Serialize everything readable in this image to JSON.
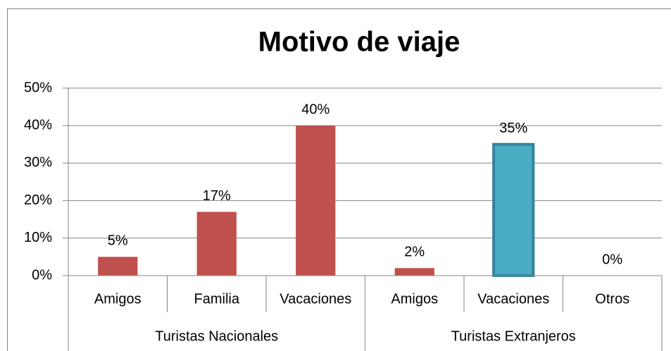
{
  "chart_data": {
    "type": "bar",
    "title": "Motivo de viaje",
    "groups": [
      {
        "name": "Turistas Nacionales",
        "categories": [
          "Amigos",
          "Familia",
          "Vacaciones"
        ],
        "values": [
          5,
          17,
          40
        ],
        "value_labels": [
          "5%",
          "17%",
          "40%"
        ],
        "colors": [
          "#c0504d",
          "#c0504d",
          "#c0504d"
        ]
      },
      {
        "name": "Turistas Extranjeros",
        "categories": [
          "Amigos",
          "Vacaciones",
          "Otros"
        ],
        "values": [
          2,
          35,
          0
        ],
        "value_labels": [
          "2%",
          "35%",
          "0%"
        ],
        "colors": [
          "#c0504d",
          "#4bacc6",
          "#c0504d"
        ]
      }
    ],
    "ylim": [
      0,
      50
    ],
    "yticks": [
      {
        "value": 0,
        "label": "0%"
      },
      {
        "value": 10,
        "label": "10%"
      },
      {
        "value": 20,
        "label": "20%"
      },
      {
        "value": 30,
        "label": "30%"
      },
      {
        "value": 40,
        "label": "40%"
      },
      {
        "value": 50,
        "label": "50%"
      }
    ],
    "grid": true
  }
}
